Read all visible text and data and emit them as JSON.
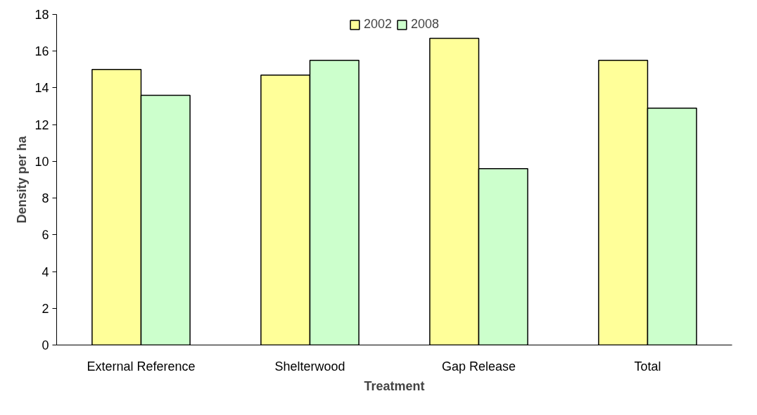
{
  "chart_data": {
    "type": "bar",
    "xlabel": "Treatment",
    "ylabel": "Density per ha",
    "categories": [
      "External Reference",
      "Shelterwood",
      "Gap Release",
      "Total"
    ],
    "series": [
      {
        "name": "2002",
        "color": "#ffff99",
        "values": [
          15.0,
          14.7,
          16.7,
          15.5
        ]
      },
      {
        "name": "2008",
        "color": "#ccffcc",
        "values": [
          13.6,
          15.5,
          9.6,
          12.9
        ]
      }
    ],
    "ylim": [
      0,
      18
    ],
    "yticks": [
      0,
      2,
      4,
      6,
      8,
      10,
      12,
      14,
      16,
      18
    ],
    "grid": false,
    "legend": "top"
  }
}
